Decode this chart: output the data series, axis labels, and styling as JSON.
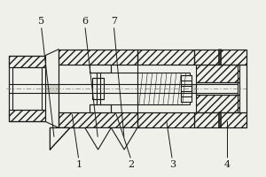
{
  "background_color": "#f0f0ea",
  "line_color": "#1a1a1a",
  "lw": 0.8,
  "figsize": [
    3.0,
    2.0
  ],
  "dpi": 100
}
